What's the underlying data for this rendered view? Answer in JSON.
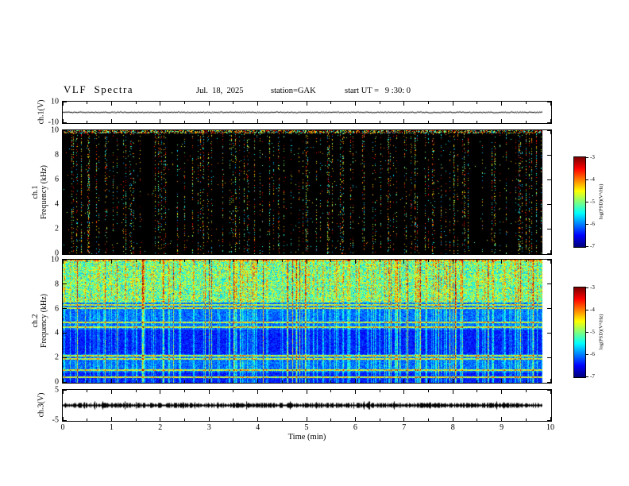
{
  "header": {
    "title": "VLF  Spectra",
    "date": "Jul.  18,  2025",
    "station": "station=GAK",
    "start_ut": "start UT =   9 :30: 0"
  },
  "panels": {
    "ch1v": {
      "ylabel": "ch.1(V)",
      "yticks": [
        10,
        -10
      ]
    },
    "spec1": {
      "channel": "ch.1",
      "ylabel": "Frequency (kHz)",
      "yticks": [
        0,
        2,
        4,
        6,
        8,
        10
      ]
    },
    "spec2": {
      "channel": "ch.2",
      "ylabel": "Frequency (kHz)",
      "yticks": [
        0,
        2,
        4,
        6,
        8,
        10
      ]
    },
    "ch3v": {
      "ylabel": "ch.3(V)",
      "yticks": [
        5,
        -5
      ]
    }
  },
  "xaxis": {
    "label": "Time (min)",
    "ticks": [
      0,
      1,
      2,
      3,
      4,
      5,
      6,
      7,
      8,
      9,
      10
    ],
    "range": [
      0,
      10
    ]
  },
  "colorbar": {
    "label": "log(PSD)(V²/Hz)",
    "ticks": [
      -3,
      -4,
      -5,
      -6,
      -7
    ],
    "range": [
      -7,
      -3
    ],
    "colormap": "jet"
  },
  "chart_data": [
    {
      "type": "line",
      "name": "ch.1 voltage trace",
      "xlabel": "Time (min)",
      "xlim": [
        0,
        10
      ],
      "ylabel": "ch.1(V)",
      "ylim": [
        -10,
        10
      ],
      "yticks": [
        -10,
        10
      ],
      "series_description": "flat trace near 0 V for the full 0–9.8 min record"
    },
    {
      "type": "heatmap",
      "name": "ch.1 spectrogram",
      "xlim": [
        0,
        10
      ],
      "ylim_kHz": [
        0,
        10
      ],
      "yticks": [
        0,
        2,
        4,
        6,
        8,
        10
      ],
      "colormap": "jet",
      "value_scale_log_psd": [
        -7,
        -3
      ],
      "features": {
        "typical_level": "below color scale (black background)",
        "bright_edge_kHz": [
          9.75,
          10
        ],
        "vertical_impulse_streaks": "sparse broadband impulses spanning 0–10 kHz, mixed cyan/green/yellow/red"
      }
    },
    {
      "type": "heatmap",
      "name": "ch.2 spectrogram",
      "xlim": [
        0,
        10
      ],
      "ylim_kHz": [
        0,
        10
      ],
      "yticks": [
        0,
        2,
        4,
        6,
        8,
        10
      ],
      "colormap": "jet",
      "value_scale_log_psd": [
        -7,
        -3
      ],
      "features": {
        "bright_region_kHz": [
          6.55,
          10
        ],
        "horizontal_line_bands_kHz": [
          6.35,
          6.1,
          4.95,
          4.55,
          2.2,
          1.95,
          1.05,
          0.5
        ],
        "dark_regions_kHz": [
          [
            2.35,
            4.35
          ],
          [
            0,
            0.85
          ]
        ],
        "background_level": "dark blue noise floor",
        "vertical_impulse_streaks": "dense broadband impulses over full band"
      }
    },
    {
      "type": "line",
      "name": "ch.3 voltage trace",
      "xlabel": "Time (min)",
      "xlim": [
        0,
        10
      ],
      "ylabel": "ch.3(V)",
      "ylim": [
        -5,
        5
      ],
      "yticks": [
        -5,
        5
      ],
      "series_description": "noisy flat band near 0 V for the full 0–9.8 min record"
    }
  ]
}
